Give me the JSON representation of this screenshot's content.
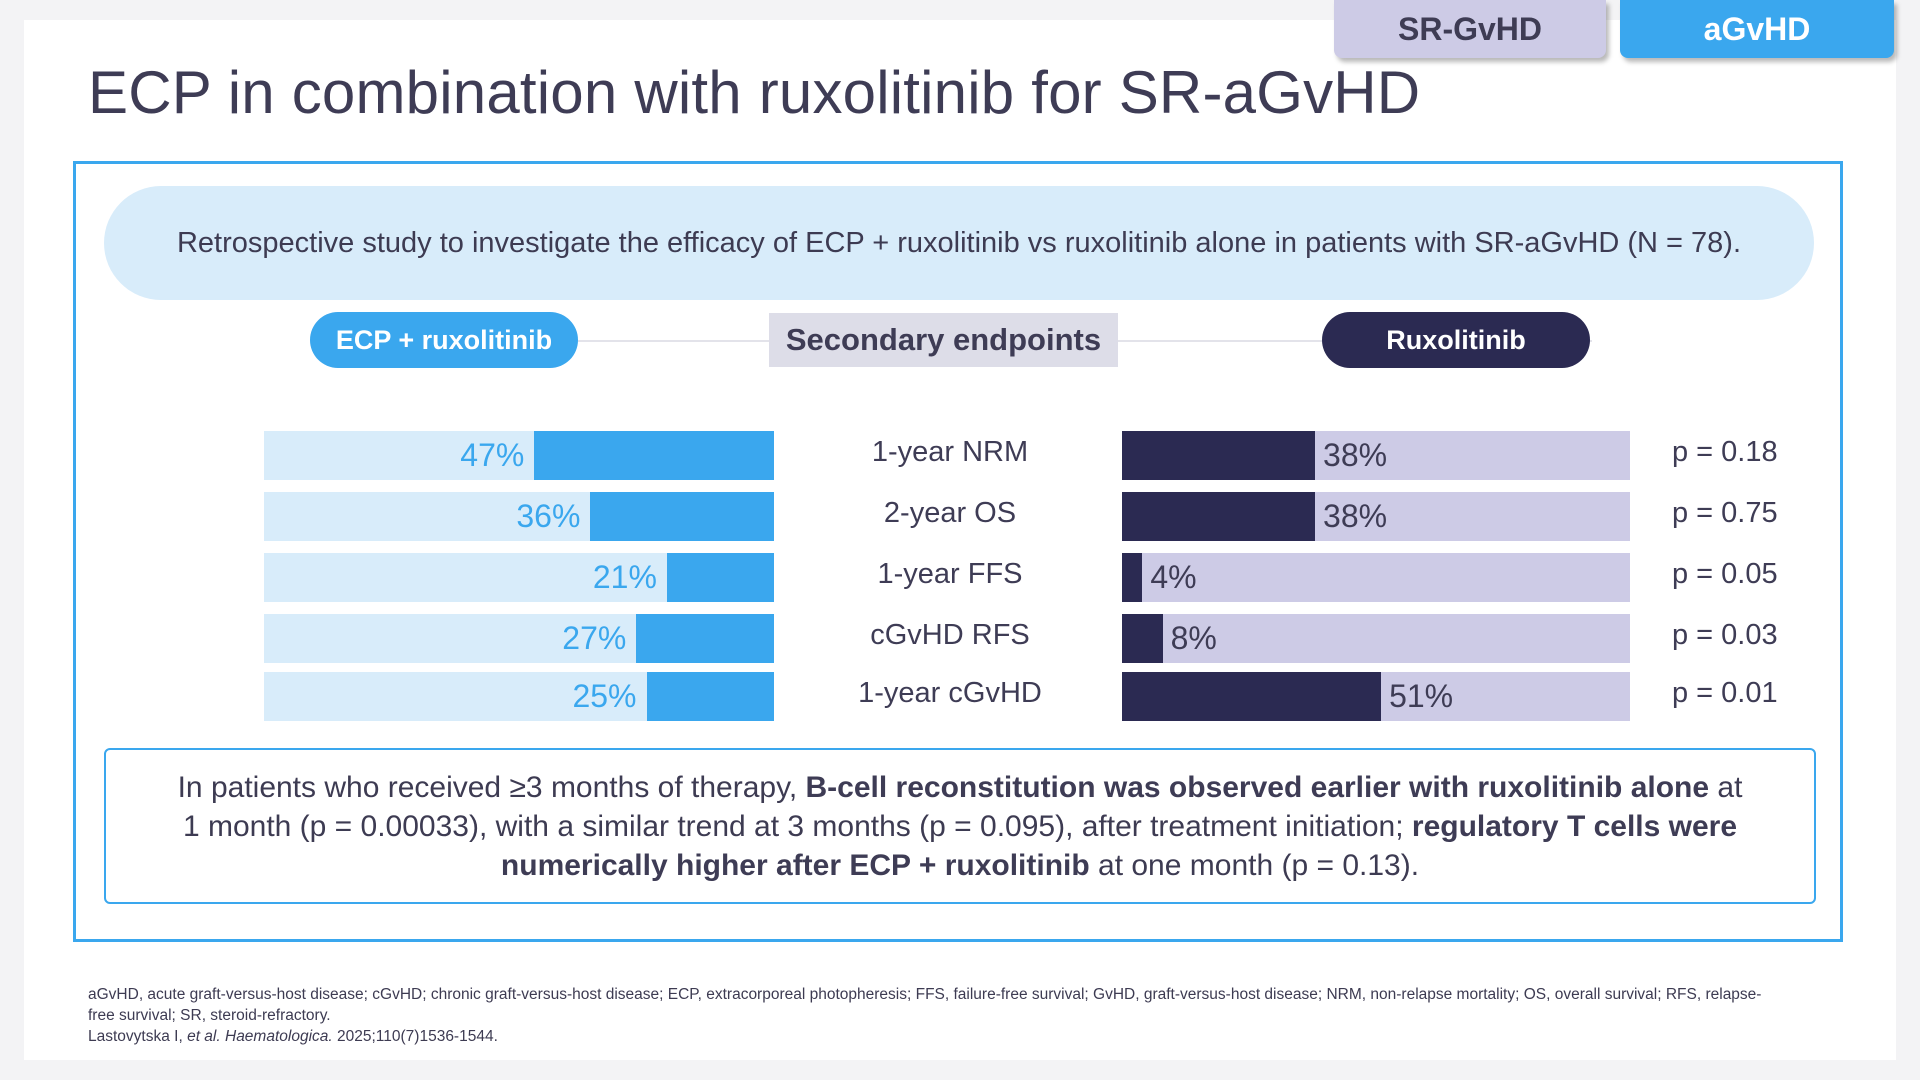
{
  "tabs": [
    {
      "label": "SR-GvHD"
    },
    {
      "label": "aGvHD"
    }
  ],
  "title": "ECP in combination with ruxolitinib for SR-aGvHD",
  "study_description": "Retrospective study to investigate the efficacy of ECP + ruxolitinib vs ruxolitinib alone in patients with SR-aGvHD (N = 78).",
  "headers": {
    "left": "ECP + ruxolitinib",
    "center": "Secondary endpoints",
    "right": "Ruxolitinib"
  },
  "chart_data": {
    "type": "bar",
    "categories": [
      "1-year NRM",
      "2-year OS",
      "1-year FFS",
      "cGvHD RFS",
      "1-year cGvHD"
    ],
    "series": [
      {
        "name": "ECP + ruxolitinib",
        "values": [
          47,
          36,
          21,
          27,
          25
        ],
        "labels": [
          "47%",
          "36%",
          "21%",
          "27%",
          "25%"
        ],
        "color": "#3aa7ee"
      },
      {
        "name": "Ruxolitinib",
        "values": [
          38,
          38,
          4,
          8,
          51
        ],
        "labels": [
          "38%",
          "38%",
          "4%",
          "8%",
          "51%"
        ],
        "color": "#2b2a52"
      }
    ],
    "p_values": [
      "p = 0.18",
      "p = 0.75",
      "p = 0.05",
      "p = 0.03",
      "p = 0.01"
    ],
    "ylim": [
      0,
      100
    ]
  },
  "summary": {
    "s1": "In patients who received ≥3 months of therapy, ",
    "s2": "B-cell reconstitution was observed earlier with ruxolitinib alone",
    "s3": " at 1 month (p = 0.00033), with a similar trend at 3 months (p = 0.095), after treatment initiation; ",
    "s4": "regulatory T cells were numerically higher after ECP + ruxolitinib",
    "s5": " at one month (p = 0.13)."
  },
  "footnote": {
    "abbreviations": "aGvHD, acute graft-versus-host disease; cGvHD; chronic graft-versus-host disease; ECP, extracorporeal photopheresis; FFS, failure-free survival; GvHD, graft-versus-host disease; NRM, non-relapse mortality; OS, overall survival; RFS, relapse-free survival; SR, steroid-refractory.",
    "ref_authors": "Lastovytska I, ",
    "ref_etal": "et al.",
    "ref_journal": " Haematologica.",
    "ref_details": " 2025;110(7)1536-1544."
  }
}
